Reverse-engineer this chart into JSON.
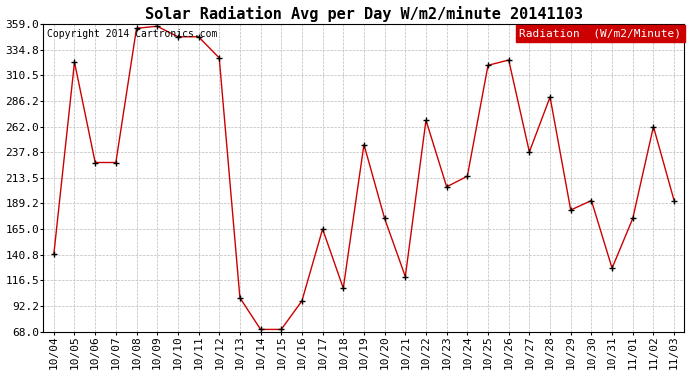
{
  "title": "Solar Radiation Avg per Day W/m2/minute 20141103",
  "copyright": "Copyright 2014 Cartronics.com",
  "legend_label": "Radiation  (W/m2/Minute)",
  "x_labels": [
    "10/04",
    "10/05",
    "10/06",
    "10/07",
    "10/08",
    "10/09",
    "10/10",
    "10/11",
    "10/12",
    "10/13",
    "10/14",
    "10/15",
    "10/16",
    "10/17",
    "10/18",
    "10/19",
    "10/20",
    "10/21",
    "10/22",
    "10/23",
    "10/24",
    "10/25",
    "10/26",
    "10/27",
    "10/28",
    "10/29",
    "10/30",
    "10/31",
    "11/01",
    "11/02",
    "11/03"
  ],
  "y_values": [
    141,
    323,
    228,
    228,
    355,
    357,
    347,
    347,
    327,
    100,
    70,
    70,
    97,
    165,
    109,
    245,
    175,
    120,
    268,
    205,
    215,
    320,
    325,
    238,
    290,
    183,
    192,
    128,
    175,
    262,
    192
  ],
  "y_ticks": [
    68.0,
    92.2,
    116.5,
    140.8,
    165.0,
    189.2,
    213.5,
    237.8,
    262.0,
    286.2,
    310.5,
    334.8,
    359.0
  ],
  "ylim": [
    68.0,
    359.0
  ],
  "line_color": "#cc0000",
  "marker_color": "#000000",
  "background_color": "#ffffff",
  "grid_color": "#bbbbbb",
  "legend_bg": "#cc0000",
  "legend_text_color": "#ffffff",
  "title_fontsize": 11,
  "copyright_fontsize": 7,
  "tick_fontsize": 8,
  "legend_fontsize": 8
}
